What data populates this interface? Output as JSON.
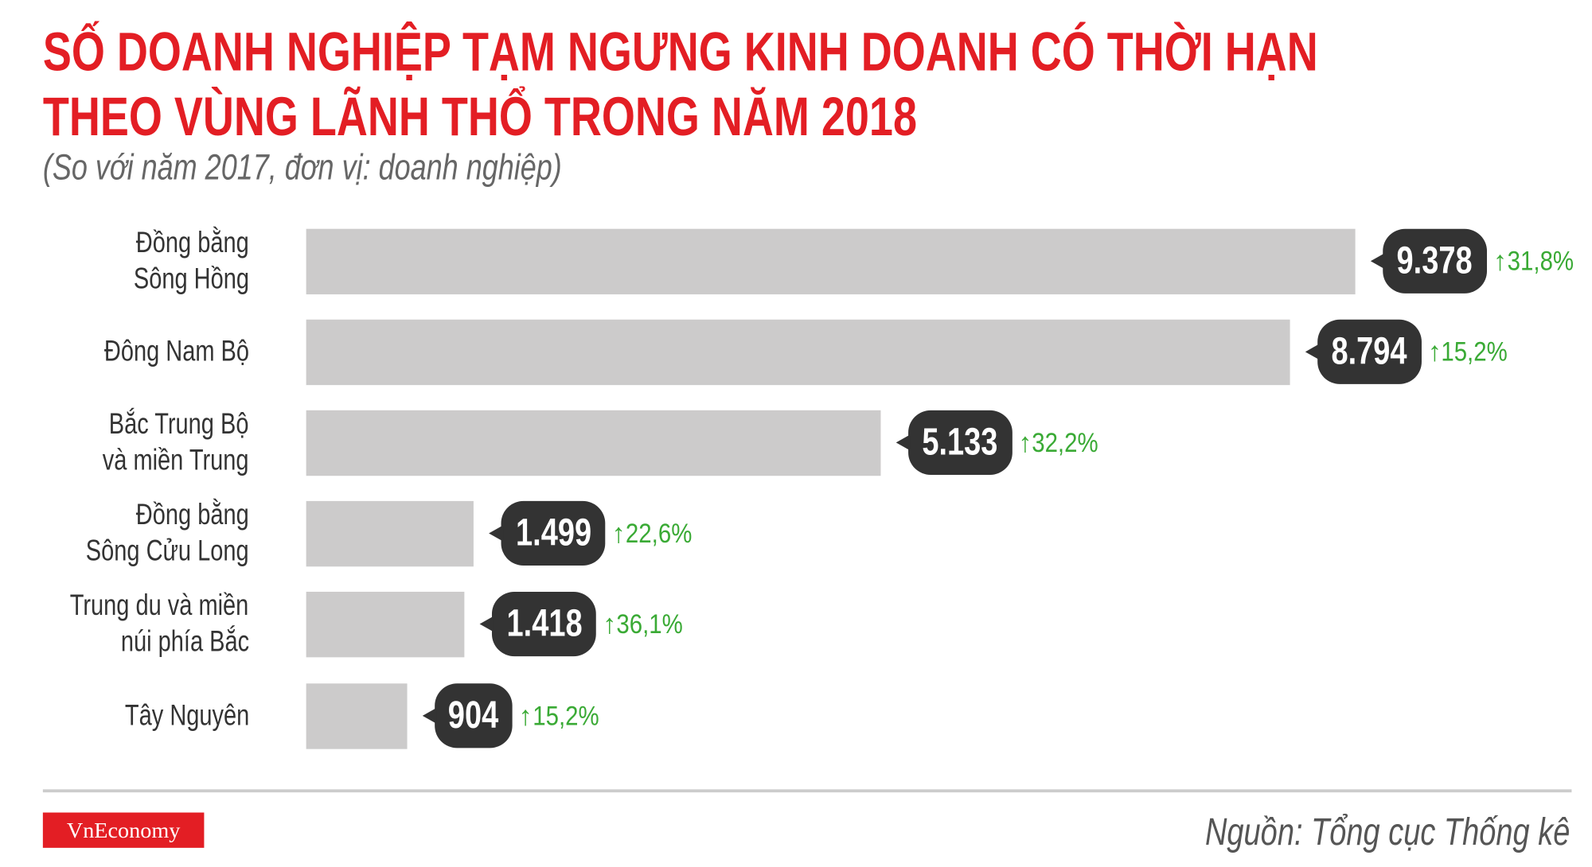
{
  "title_line1": "SỐ DOANH NGHIỆP TẠM NGƯNG KINH DOANH CÓ THỜI HẠN",
  "title_line2": "THEO VÙNG LÃNH THỔ TRONG NĂM 2018",
  "subtitle": "(So với năm 2017, đơn vị: doanh nghiệp)",
  "logo": "VnEconomy",
  "source": "Nguồn: Tổng cục Thống kê",
  "colors": {
    "title": "#e31e24",
    "bar": "#cccbcb",
    "bubble": "#333333",
    "increase": "#3aaa35"
  },
  "chart_data": {
    "type": "bar",
    "orientation": "horizontal",
    "categories": [
      [
        "Đồng bằng",
        "Sông Hồng"
      ],
      [
        "Đông Nam Bộ"
      ],
      [
        "Bắc Trung Bộ",
        "và miền Trung"
      ],
      [
        "Đồng bằng",
        "Sông Cửu Long"
      ],
      [
        "Trung du và miền",
        "núi phía Bắc"
      ],
      [
        "Tây Nguyên"
      ]
    ],
    "values": [
      9378,
      8794,
      5133,
      1499,
      1418,
      904
    ],
    "value_labels": [
      "9.378",
      "8.794",
      "5.133",
      "1.499",
      "1.418",
      "904"
    ],
    "change_labels": [
      "31,8%",
      "15,2%",
      "32,2%",
      "22,6%",
      "36,1%",
      "15,2%"
    ],
    "change_icon": "arrow-up-icon",
    "grid": false,
    "axes_visible": false
  }
}
